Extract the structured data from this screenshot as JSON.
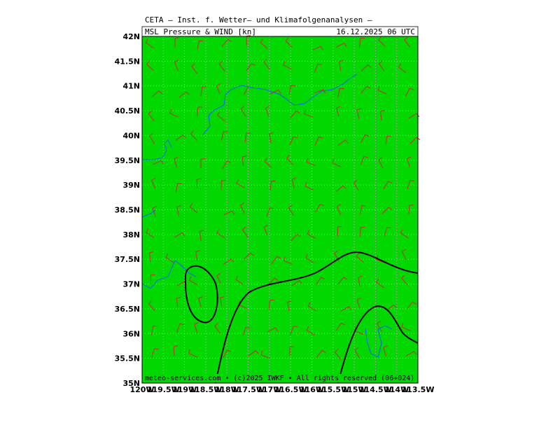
{
  "map": {
    "title": "CETA — Inst. f. Wetter— und Klimafolgenanalysen —",
    "subtitle": "MSL Pressure & WIND [kn]",
    "valid_time": "16.12.2025 06 UTC",
    "footer": "meteo-services.com • (c)2025 IWKF • All rights reserved (06+024)",
    "lat_labels": [
      "42N",
      "41.5N",
      "41N",
      "40.5N",
      "40N",
      "39.5N",
      "39N",
      "38.5N",
      "38N",
      "37.5N",
      "37N",
      "36.5N",
      "36N",
      "35.5N",
      "35N"
    ],
    "lon_labels": [
      "120W",
      "119.5W",
      "119W",
      "118.5W",
      "118W",
      "117.5W",
      "117W",
      "116.5W",
      "116W",
      "115.5W",
      "115W",
      "114.5W",
      "114W",
      "113.5W"
    ]
  }
}
